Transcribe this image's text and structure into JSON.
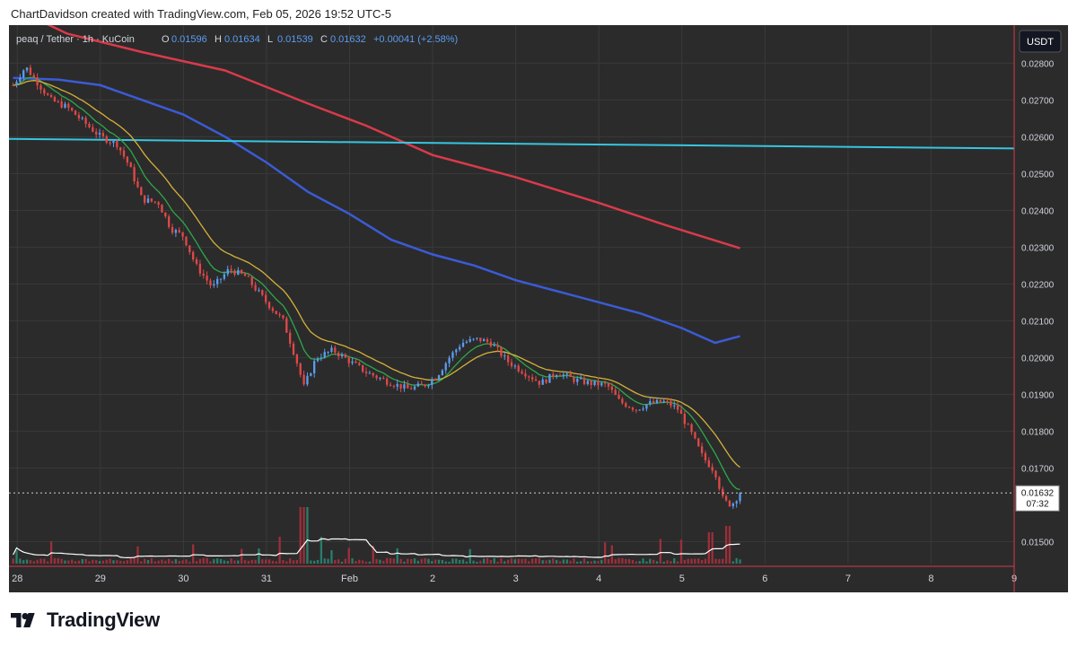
{
  "attribution": "ChartDavidson created with TradingView.com, Feb 05, 2026 19:52 UTC-5",
  "brand": "TradingView",
  "colors": {
    "background": "#2b2b2b",
    "grid": "#3a3a3a",
    "up": "#5b9cf0",
    "down": "#e04848",
    "ema_fast": "#2ea84a",
    "ema_slow": "#d4b13a",
    "ma_mid": "#3b5bd6",
    "ma_long": "#d93a4a",
    "horizontal_line": "#36c6e0",
    "volume_ma": "#ffffff",
    "text": "#d1d4dc"
  },
  "chart_data": {
    "type": "candlestick",
    "symbol": "peaq / Tether · 1h · KuCoin",
    "ohlc": {
      "O_label": "O",
      "O": "0.01596",
      "H_label": "H",
      "H": "0.01634",
      "L_label": "L",
      "L": "0.01539",
      "C_label": "C",
      "C": "0.01632",
      "change": "+0.00041 (+2.58%)"
    },
    "currency_button": "USDT",
    "last_price": "0.01632",
    "countdown": "07:32",
    "y_ticks": [
      "0.02800",
      "0.02700",
      "0.02600",
      "0.02500",
      "0.02400",
      "0.02300",
      "0.02200",
      "0.02100",
      "0.02000",
      "0.01900",
      "0.01800",
      "0.01700",
      "0.01500"
    ],
    "x_ticks": [
      "28",
      "29",
      "30",
      "31",
      "Feb",
      "2",
      "3",
      "4",
      "5",
      "6",
      "7",
      "8",
      "9"
    ],
    "ylim": [
      0.0144,
      0.0283
    ],
    "close_path": [
      [
        27.95,
        0.0274
      ],
      [
        28.1,
        0.0279
      ],
      [
        28.2,
        0.0276
      ],
      [
        28.4,
        0.027
      ],
      [
        28.6,
        0.0268
      ],
      [
        28.8,
        0.0264
      ],
      [
        29.0,
        0.026
      ],
      [
        29.2,
        0.0258
      ],
      [
        29.35,
        0.0252
      ],
      [
        29.5,
        0.0243
      ],
      [
        29.7,
        0.0242
      ],
      [
        29.85,
        0.0235
      ],
      [
        30.0,
        0.0233
      ],
      [
        30.15,
        0.0225
      ],
      [
        30.35,
        0.0219
      ],
      [
        30.55,
        0.0224
      ],
      [
        30.75,
        0.0222
      ],
      [
        31.0,
        0.0215
      ],
      [
        31.2,
        0.021
      ],
      [
        31.35,
        0.02
      ],
      [
        31.45,
        0.0192
      ],
      [
        31.6,
        0.02
      ],
      [
        31.8,
        0.0202
      ],
      [
        32.0,
        0.0199
      ],
      [
        32.2,
        0.0196
      ],
      [
        32.45,
        0.01935
      ],
      [
        32.7,
        0.01915
      ],
      [
        32.9,
        0.01925
      ],
      [
        33.05,
        0.0195
      ],
      [
        33.2,
        0.02
      ],
      [
        33.35,
        0.0204
      ],
      [
        33.55,
        0.0205
      ],
      [
        33.7,
        0.0204
      ],
      [
        33.9,
        0.0199
      ],
      [
        34.1,
        0.0196
      ],
      [
        34.3,
        0.0193
      ],
      [
        34.5,
        0.0196
      ],
      [
        34.7,
        0.0194
      ],
      [
        34.9,
        0.0193
      ],
      [
        35.1,
        0.01925
      ],
      [
        35.25,
        0.0188
      ],
      [
        35.45,
        0.0186
      ],
      [
        35.6,
        0.01875
      ],
      [
        35.8,
        0.0188
      ],
      [
        35.95,
        0.0186
      ],
      [
        36.1,
        0.018
      ],
      [
        36.25,
        0.0173
      ],
      [
        36.4,
        0.0169
      ],
      [
        36.5,
        0.0161
      ],
      [
        36.6,
        0.016
      ],
      [
        36.7,
        0.01632
      ]
    ],
    "indicators": [
      {
        "name": "MA long",
        "color_key": "ma_long",
        "points": [
          [
            27.95,
            0.0295
          ],
          [
            28.6,
            0.0288
          ],
          [
            29.5,
            0.0283
          ],
          [
            30.5,
            0.0278
          ],
          [
            31.5,
            0.0269
          ],
          [
            32.2,
            0.0263
          ],
          [
            33.0,
            0.0255
          ],
          [
            34.0,
            0.0249
          ],
          [
            35.0,
            0.0242
          ],
          [
            35.8,
            0.0236
          ],
          [
            36.7,
            0.02297
          ]
        ]
      },
      {
        "name": "MA mid",
        "color_key": "ma_mid",
        "points": [
          [
            27.95,
            0.0276
          ],
          [
            28.5,
            0.02755
          ],
          [
            29.0,
            0.0274
          ],
          [
            29.5,
            0.027
          ],
          [
            30.0,
            0.0266
          ],
          [
            30.5,
            0.026
          ],
          [
            31.0,
            0.0253
          ],
          [
            31.5,
            0.0245
          ],
          [
            32.0,
            0.0239
          ],
          [
            32.5,
            0.0232
          ],
          [
            33.0,
            0.0228
          ],
          [
            33.5,
            0.0225
          ],
          [
            34.0,
            0.0221
          ],
          [
            34.5,
            0.0218
          ],
          [
            35.0,
            0.0215
          ],
          [
            35.5,
            0.0212
          ],
          [
            36.0,
            0.0208
          ],
          [
            36.4,
            0.0204
          ],
          [
            36.7,
            0.02058
          ]
        ]
      },
      {
        "name": "Horizontal line",
        "color_key": "horizontal_line",
        "points": [
          [
            27.9,
            0.02594
          ],
          [
            40.0,
            0.02568
          ]
        ]
      }
    ]
  },
  "x_axis_range": [
    27.9,
    40.0
  ]
}
